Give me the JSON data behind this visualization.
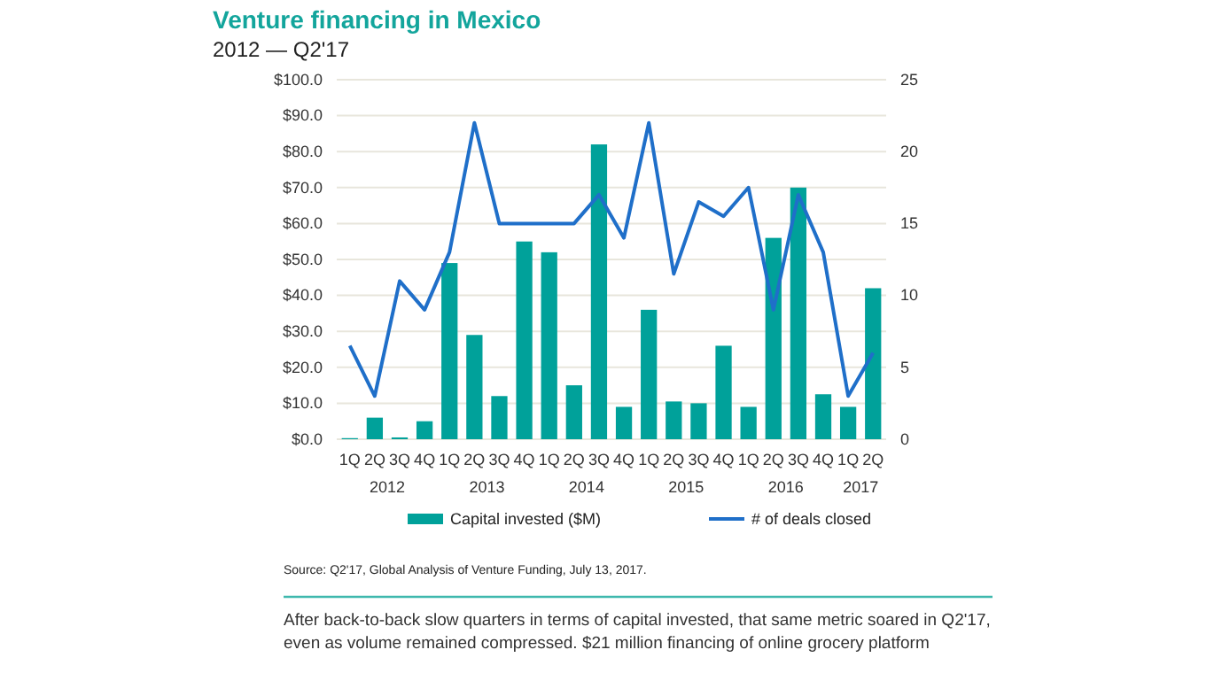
{
  "chart_data": {
    "type": "bar",
    "title": "Venture financing in Mexico",
    "subtitle": "2012 — Q2'17",
    "categories": [
      "1Q",
      "2Q",
      "3Q",
      "4Q",
      "1Q",
      "2Q",
      "3Q",
      "4Q",
      "1Q",
      "2Q",
      "3Q",
      "4Q",
      "1Q",
      "2Q",
      "3Q",
      "4Q",
      "1Q",
      "2Q",
      "3Q",
      "4Q",
      "1Q",
      "2Q"
    ],
    "series": [
      {
        "name": "Capital invested ($M)",
        "color": "#00a19a",
        "values": [
          0.3,
          6,
          0.5,
          5,
          49,
          29,
          12,
          55,
          52,
          15,
          82,
          9,
          36,
          10.5,
          10,
          26,
          9,
          56,
          70,
          12.5,
          9,
          42
        ]
      },
      {
        "name": "# of deals closed",
        "type": "line",
        "axis": "y2",
        "color": "#1f6fc9",
        "values": [
          6.5,
          3,
          11,
          9,
          13,
          22,
          15,
          15,
          15,
          15,
          17,
          14,
          22,
          11.5,
          16.5,
          15.5,
          17.5,
          9,
          17,
          13,
          3,
          6
        ]
      }
    ],
    "ylim": [
      0,
      100
    ],
    "yticks": [
      {
        "value": 0,
        "label": "$0.0"
      },
      {
        "value": 10,
        "label": "$10.0"
      },
      {
        "value": 20,
        "label": "$20.0"
      },
      {
        "value": 30,
        "label": "$30.0"
      },
      {
        "value": 40,
        "label": "$40.0"
      },
      {
        "value": 50,
        "label": "$50.0"
      },
      {
        "value": 60,
        "label": "$60.0"
      },
      {
        "value": 70,
        "label": "$70.0"
      },
      {
        "value": 80,
        "label": "$80.0"
      },
      {
        "value": 90,
        "label": "$90.0"
      },
      {
        "value": 100,
        "label": "$100.0"
      }
    ],
    "y2lim": [
      0,
      25
    ],
    "y2ticks": [
      0,
      5,
      10,
      15,
      20,
      25
    ],
    "grid": "y",
    "legend": "bottom",
    "marker": "none",
    "annotations": [
      "2012",
      "2013",
      "2014",
      "2015",
      "2016",
      "2017",
      "Source: Q2'17, Global Analysis of Venture Funding, July 13, 2017.",
      "After back-to-back slow quarters in terms of capital invested, that same metric soared in Q2'17, even as volume remained compressed. $21 million financing of online grocery platform"
    ]
  }
}
